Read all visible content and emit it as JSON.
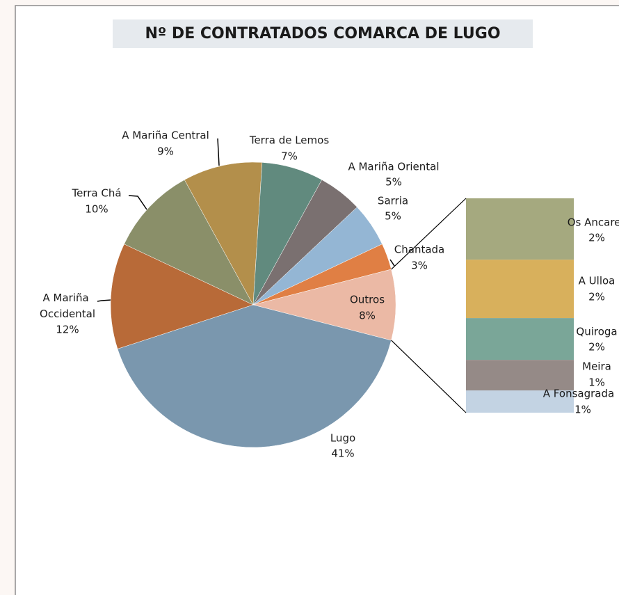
{
  "chart_data": {
    "type": "pie",
    "title": "Nº DE CONTRATADOS COMARCA DE LUGO",
    "categories": [
      "Lugo",
      "A Mariña Occidental",
      "Terra Chá",
      "A Mariña Central",
      "Terra de Lemos",
      "A Mariña Oriental",
      "Sarria",
      "Chantada",
      "Outros"
    ],
    "values": [
      41,
      12,
      10,
      9,
      7,
      5,
      5,
      3,
      8
    ],
    "value_labels": [
      "41%",
      "12%",
      "10%",
      "9%",
      "7%",
      "5%",
      "5%",
      "3%",
      "8%"
    ],
    "colors": [
      "#7a97ae",
      "#b86a38",
      "#8a8f69",
      "#b38f4b",
      "#618a7e",
      "#7a7070",
      "#94b6d4",
      "#e07f44",
      "#ebb9a5"
    ],
    "breakdown": {
      "categories": [
        "Os Ancares",
        "A Ulloa",
        "Quiroga",
        "Meira",
        "A Fonsagrada"
      ],
      "values": [
        2.29,
        2.18,
        1.56,
        1.14,
        0.83
      ],
      "value_labels": [
        "2%",
        "2%",
        "2%",
        "1%",
        "1%"
      ],
      "colors": [
        "#a5a97f",
        "#d8b05c",
        "#7aa698",
        "#958a87",
        "#c3d3e3"
      ]
    }
  }
}
